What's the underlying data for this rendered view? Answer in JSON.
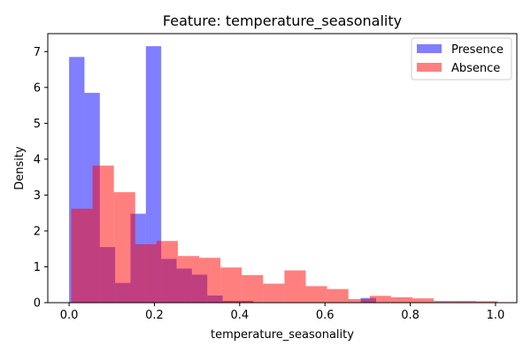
{
  "chart_data": {
    "type": "bar",
    "title": "Feature: temperature_seasonality",
    "xlabel": "temperature_seasonality",
    "ylabel": "Density",
    "xlim": [
      -0.05,
      1.05
    ],
    "ylim": [
      0,
      7.5
    ],
    "xticks": [
      "0.0",
      "0.2",
      "0.4",
      "0.6",
      "0.8",
      "1.0"
    ],
    "yticks": [
      "0",
      "1",
      "2",
      "3",
      "4",
      "5",
      "6",
      "7"
    ],
    "grid": false,
    "legend_position": "top-right",
    "series": [
      {
        "name": "Presence",
        "color": "#0000ff",
        "opacity": 0.5,
        "bins": [
          {
            "x0": 0.0,
            "x1": 0.036,
            "y": 6.85
          },
          {
            "x0": 0.036,
            "x1": 0.072,
            "y": 5.85
          },
          {
            "x0": 0.072,
            "x1": 0.108,
            "y": 1.55
          },
          {
            "x0": 0.108,
            "x1": 0.144,
            "y": 0.55
          },
          {
            "x0": 0.144,
            "x1": 0.18,
            "y": 2.48
          },
          {
            "x0": 0.18,
            "x1": 0.216,
            "y": 7.15
          },
          {
            "x0": 0.216,
            "x1": 0.252,
            "y": 1.22
          },
          {
            "x0": 0.252,
            "x1": 0.288,
            "y": 0.95
          },
          {
            "x0": 0.288,
            "x1": 0.324,
            "y": 0.78
          },
          {
            "x0": 0.324,
            "x1": 0.36,
            "y": 0.2
          },
          {
            "x0": 0.36,
            "x1": 0.396,
            "y": 0.05
          },
          {
            "x0": 0.396,
            "x1": 0.432,
            "y": 0.05
          },
          {
            "x0": 0.432,
            "x1": 0.468,
            "y": 0.0
          },
          {
            "x0": 0.468,
            "x1": 0.504,
            "y": 0.0
          },
          {
            "x0": 0.504,
            "x1": 0.54,
            "y": 0.0
          },
          {
            "x0": 0.54,
            "x1": 0.576,
            "y": 0.0
          },
          {
            "x0": 0.576,
            "x1": 0.612,
            "y": 0.0
          },
          {
            "x0": 0.612,
            "x1": 0.648,
            "y": 0.0
          },
          {
            "x0": 0.648,
            "x1": 0.684,
            "y": 0.0
          },
          {
            "x0": 0.684,
            "x1": 0.72,
            "y": 0.13
          }
        ]
      },
      {
        "name": "Absence",
        "color": "#ff0000",
        "opacity": 0.5,
        "bins": [
          {
            "x0": 0.005,
            "x1": 0.055,
            "y": 2.62
          },
          {
            "x0": 0.055,
            "x1": 0.105,
            "y": 3.82
          },
          {
            "x0": 0.105,
            "x1": 0.155,
            "y": 3.08
          },
          {
            "x0": 0.155,
            "x1": 0.205,
            "y": 1.63
          },
          {
            "x0": 0.205,
            "x1": 0.255,
            "y": 1.72
          },
          {
            "x0": 0.255,
            "x1": 0.305,
            "y": 1.3
          },
          {
            "x0": 0.305,
            "x1": 0.355,
            "y": 1.25
          },
          {
            "x0": 0.355,
            "x1": 0.405,
            "y": 0.98
          },
          {
            "x0": 0.405,
            "x1": 0.455,
            "y": 0.77
          },
          {
            "x0": 0.455,
            "x1": 0.505,
            "y": 0.53
          },
          {
            "x0": 0.505,
            "x1": 0.555,
            "y": 0.9
          },
          {
            "x0": 0.555,
            "x1": 0.605,
            "y": 0.46
          },
          {
            "x0": 0.605,
            "x1": 0.655,
            "y": 0.38
          },
          {
            "x0": 0.655,
            "x1": 0.705,
            "y": 0.1
          },
          {
            "x0": 0.705,
            "x1": 0.755,
            "y": 0.19
          },
          {
            "x0": 0.755,
            "x1": 0.805,
            "y": 0.15
          },
          {
            "x0": 0.805,
            "x1": 0.855,
            "y": 0.12
          },
          {
            "x0": 0.855,
            "x1": 0.905,
            "y": 0.05
          },
          {
            "x0": 0.905,
            "x1": 0.955,
            "y": 0.05
          },
          {
            "x0": 0.955,
            "x1": 1.005,
            "y": 0.04
          }
        ]
      }
    ]
  }
}
